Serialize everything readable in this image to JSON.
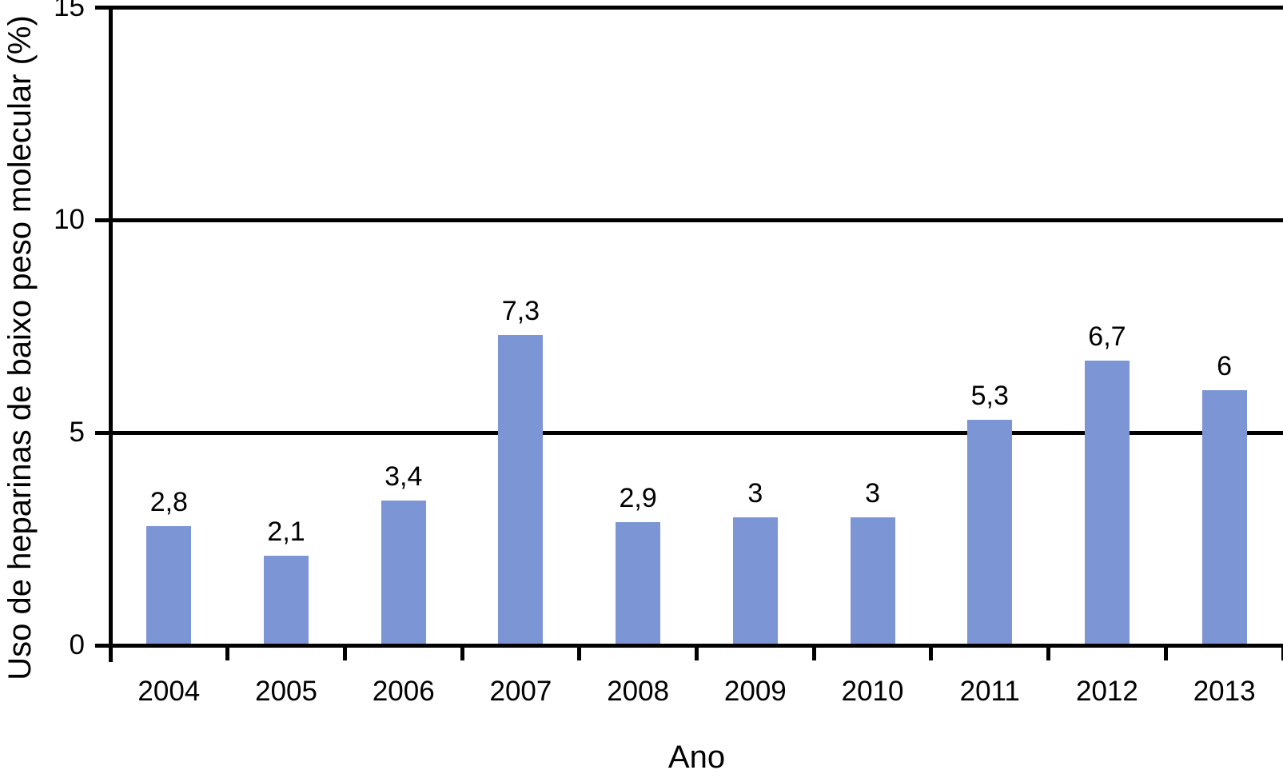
{
  "chart_data": {
    "type": "bar",
    "title": "",
    "xlabel": "Ano",
    "ylabel": "Uso de heparinas de baixo peso molecular (%)",
    "categories": [
      "2004",
      "2005",
      "2006",
      "2007",
      "2008",
      "2009",
      "2010",
      "2011",
      "2012",
      "2013"
    ],
    "values": [
      2.8,
      2.1,
      3.4,
      7.3,
      2.9,
      3,
      3,
      5.3,
      6.7,
      6
    ],
    "value_labels": [
      "2,8",
      "2,1",
      "3,4",
      "7,3",
      "2,9",
      "3",
      "3",
      "5,3",
      "6,7",
      "6"
    ],
    "ylim": [
      0,
      15
    ],
    "yticks": [
      0,
      5,
      10,
      15
    ],
    "ytick_labels": [
      "0",
      "5",
      "10",
      "15"
    ],
    "grid": "horizontal lines at 5, 10 and 15; bars drawn in front of gridlines",
    "legend": "none",
    "bar_color": "#7C95D5",
    "axis_color": "#000000",
    "background_color": "#FFFFFF",
    "decimal_separator": ","
  }
}
